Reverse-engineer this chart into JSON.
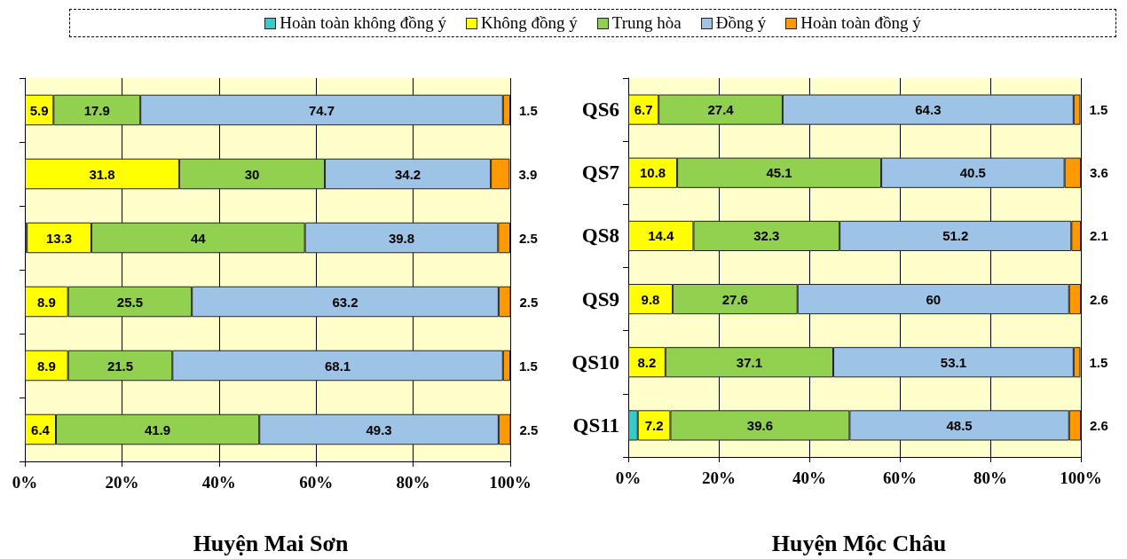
{
  "chart_data": [
    {
      "type": "bar",
      "title": "Huyện Mai Sơn",
      "orientation": "horizontal",
      "stacked": true,
      "legend": "top",
      "grid": "x",
      "tick_labels": "x",
      "categories": [
        null,
        null,
        null,
        null,
        null,
        null
      ],
      "xlim": [
        0,
        100
      ],
      "xticks": [
        {
          "value": 0,
          "label": "0%"
        },
        {
          "value": 20,
          "label": "20%"
        },
        {
          "value": 40,
          "label": "40%"
        },
        {
          "value": 60,
          "label": "60%"
        },
        {
          "value": 80,
          "label": "80%"
        },
        {
          "value": 100,
          "label": "100%"
        }
      ],
      "series": [
        {
          "name": "Hoàn toàn không đồng ý",
          "color": "#33cccc",
          "values": [
            null,
            null,
            0.4,
            null,
            null,
            null
          ],
          "value_labels": [
            null,
            null,
            null,
            null,
            null,
            null
          ]
        },
        {
          "name": "Không đồng ý",
          "color": "#ffff00",
          "values": [
            5.9,
            31.8,
            13.3,
            8.9,
            8.9,
            6.4
          ],
          "value_labels": [
            "5.9",
            "31.8",
            "13.3",
            "8.9",
            "8.9",
            "6.4"
          ]
        },
        {
          "name": "Trung hòa",
          "color": "#92d050",
          "values": [
            17.9,
            30,
            44,
            25.5,
            21.5,
            41.9
          ],
          "value_labels": [
            "17.9",
            "30",
            "44",
            "25.5",
            "21.5",
            "41.9"
          ]
        },
        {
          "name": "Đồng ý",
          "color": "#9dc3e6",
          "values": [
            74.7,
            34.2,
            39.8,
            63.2,
            68.1,
            49.3
          ],
          "value_labels": [
            "74.7",
            "34.2",
            "39.8",
            "63.2",
            "68.1",
            "49.3"
          ]
        },
        {
          "name": "Hoàn toàn đồng ý",
          "color": "#ff9900",
          "values": [
            1.5,
            3.9,
            2.5,
            2.5,
            1.5,
            2.5
          ],
          "value_labels": [
            "1.5",
            "3.9",
            "2.5",
            "2.5",
            "1.5",
            "2.5"
          ]
        }
      ]
    },
    {
      "type": "bar",
      "title": "Huyện Mộc Châu",
      "orientation": "horizontal",
      "stacked": true,
      "grid": "x",
      "categories": [
        "QS6",
        "QS7",
        "QS8",
        "QS9",
        "QS10",
        "QS11"
      ],
      "xlim": [
        0,
        100
      ],
      "xticks": [
        {
          "value": 0,
          "label": "0%"
        },
        {
          "value": 20,
          "label": "20%"
        },
        {
          "value": 40,
          "label": "40%"
        },
        {
          "value": 60,
          "label": "60%"
        },
        {
          "value": 80,
          "label": "80%"
        },
        {
          "value": 100,
          "label": "100%"
        }
      ],
      "series": [
        {
          "color": "#33cccc",
          "values": [
            null,
            null,
            null,
            null,
            null,
            2.1
          ],
          "value_labels": [
            null,
            null,
            null,
            null,
            null,
            null
          ]
        },
        {
          "color": "#ffff00",
          "values": [
            6.7,
            10.8,
            14.4,
            9.8,
            8.2,
            7.2
          ],
          "value_labels": [
            "6.7",
            "10.8",
            "14.4",
            "9.8",
            "8.2",
            "7.2"
          ]
        },
        {
          "color": "#92d050",
          "values": [
            27.4,
            45.1,
            32.3,
            27.6,
            37.1,
            39.6
          ],
          "value_labels": [
            "27.4",
            "45.1",
            "32.3",
            "27.6",
            "37.1",
            "39.6"
          ]
        },
        {
          "color": "#9dc3e6",
          "values": [
            64.3,
            40.5,
            51.2,
            60,
            53.1,
            48.5
          ],
          "value_labels": [
            "64.3",
            "40.5",
            "51.2",
            "60",
            "53.1",
            "48.5"
          ]
        },
        {
          "color": "#ff9900",
          "values": [
            1.5,
            3.6,
            2.1,
            2.6,
            1.5,
            2.6
          ],
          "value_labels": [
            "1.5",
            "3.6",
            "2.1",
            "2.6",
            "1.5",
            "2.6"
          ]
        }
      ]
    }
  ]
}
